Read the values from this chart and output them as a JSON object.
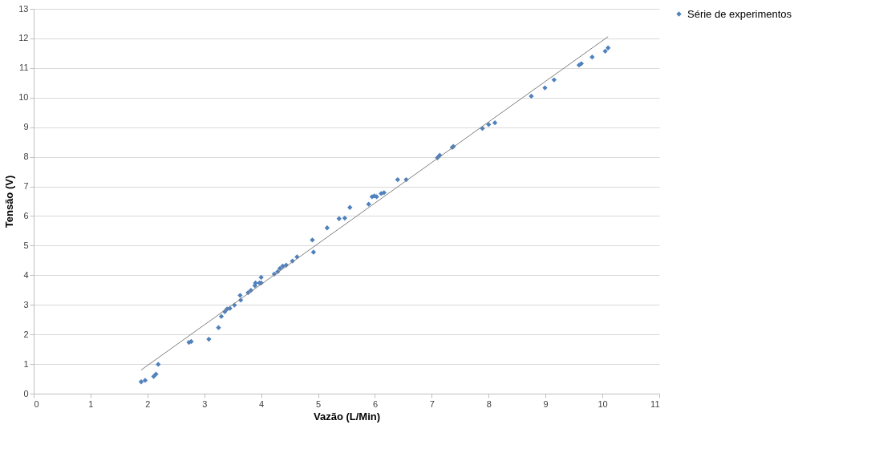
{
  "chart_data": {
    "type": "scatter",
    "xlabel": "Vazão (L/Min)",
    "ylabel": "Tensão (V)",
    "xlim": [
      0,
      11
    ],
    "xticks": [
      0,
      1,
      2,
      3,
      4,
      5,
      6,
      7,
      8,
      9,
      10,
      11
    ],
    "ylim": [
      0,
      13
    ],
    "yticks": [
      0,
      1,
      2,
      3,
      4,
      5,
      6,
      7,
      8,
      9,
      10,
      11,
      12,
      13
    ],
    "grid": "y",
    "legend": "right",
    "series": [
      {
        "name": "Série de experimentos",
        "color": "#4f81bd",
        "marker": "diamond",
        "x": [
          1.89,
          1.96,
          2.11,
          2.15,
          2.19,
          2.73,
          2.77,
          3.08,
          3.25,
          3.3,
          3.36,
          3.4,
          3.45,
          3.53,
          3.63,
          3.64,
          3.77,
          3.82,
          3.89,
          3.9,
          3.97,
          4.0,
          4.0,
          4.23,
          4.29,
          4.33,
          4.38,
          4.44,
          4.55,
          4.63,
          4.9,
          4.92,
          5.16,
          5.37,
          5.47,
          5.56,
          5.89,
          5.95,
          5.99,
          6.03,
          6.11,
          6.16,
          6.4,
          6.55,
          7.1,
          7.14,
          7.36,
          7.38,
          7.89,
          8.0,
          8.11,
          8.75,
          8.99,
          9.15,
          9.59,
          9.63,
          9.82,
          10.05,
          10.1
        ],
        "values": [
          0.4,
          0.45,
          0.58,
          0.66,
          0.99,
          1.73,
          1.76,
          1.84,
          2.23,
          2.61,
          2.77,
          2.86,
          2.88,
          2.99,
          3.32,
          3.16,
          3.41,
          3.49,
          3.65,
          3.74,
          3.74,
          3.93,
          3.74,
          4.04,
          4.12,
          4.23,
          4.31,
          4.34,
          4.48,
          4.62,
          5.19,
          4.78,
          5.6,
          5.91,
          5.93,
          6.29,
          6.4,
          6.65,
          6.68,
          6.65,
          6.76,
          6.79,
          7.23,
          7.23,
          7.97,
          8.05,
          8.32,
          8.35,
          8.96,
          9.09,
          9.15,
          10.05,
          10.33,
          10.6,
          11.1,
          11.15,
          11.37,
          11.57,
          11.68
        ]
      },
      {
        "color": "#7f7f7f",
        "type": "line",
        "x": [
          1.89,
          10.1
        ],
        "values": [
          0.8,
          12.06
        ]
      }
    ]
  }
}
